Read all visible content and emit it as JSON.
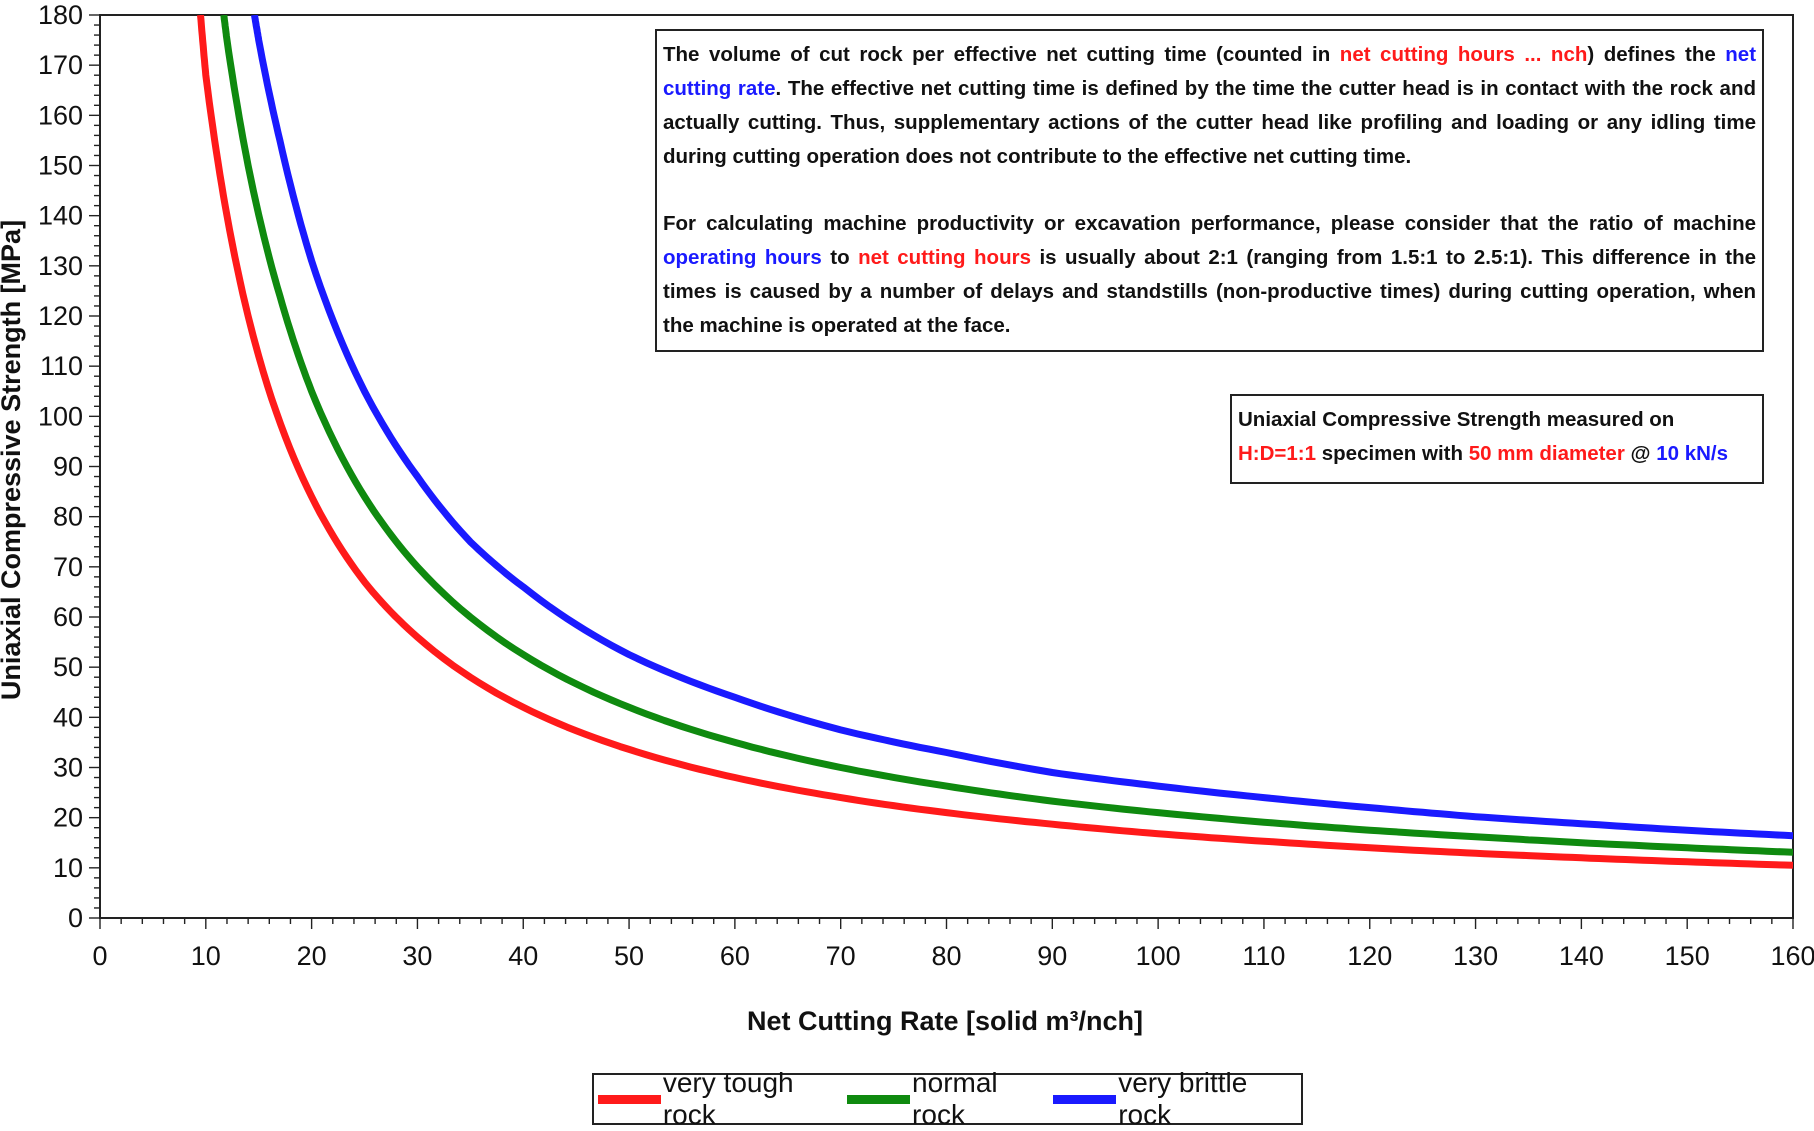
{
  "chart_data": {
    "type": "line",
    "title": "",
    "xlabel": "Net Cutting Rate [solid m³/nch]",
    "ylabel": "Uniaxial Compressive Strength [MPa]",
    "xlim": [
      0,
      160
    ],
    "ylim": [
      0,
      180
    ],
    "x_ticks": [
      0,
      10,
      20,
      30,
      40,
      50,
      60,
      70,
      80,
      90,
      100,
      110,
      120,
      130,
      140,
      150,
      160
    ],
    "y_ticks": [
      0,
      10,
      20,
      30,
      40,
      50,
      60,
      70,
      80,
      90,
      100,
      110,
      120,
      130,
      140,
      150,
      160,
      170,
      180
    ],
    "grid": true,
    "legend_position": "bottom-center",
    "series": [
      {
        "name": "very tough rock",
        "color": "#ff1a1a",
        "x": [
          9.5,
          10,
          12,
          15,
          20,
          25,
          30,
          40,
          50,
          60,
          70,
          80,
          90,
          100,
          110,
          120,
          130,
          140,
          150,
          160
        ],
        "values": [
          180,
          168,
          140,
          112,
          84,
          67,
          56,
          42,
          33.6,
          28,
          24,
          21,
          18.7,
          16.8,
          15.3,
          14,
          12.9,
          12,
          11.2,
          10.5
        ]
      },
      {
        "name": "normal rock",
        "color": "#0f8a0f",
        "x": [
          11.7,
          12,
          14,
          17,
          20,
          25,
          30,
          40,
          50,
          60,
          70,
          80,
          90,
          100,
          110,
          120,
          130,
          140,
          150,
          160
        ],
        "values": [
          180,
          175,
          150,
          124,
          105,
          84,
          70,
          52.5,
          42,
          35,
          30,
          26.3,
          23.3,
          21,
          19.1,
          17.5,
          16.2,
          15,
          14,
          13.1
        ]
      },
      {
        "name": "very brittle rock",
        "color": "#1a1aff",
        "x": [
          14.6,
          15,
          17,
          20,
          25,
          30,
          35,
          40,
          50,
          60,
          70,
          80,
          90,
          100,
          110,
          120,
          130,
          140,
          150,
          160
        ],
        "values": [
          180,
          175,
          155,
          131,
          105,
          88,
          75,
          66,
          52.5,
          44,
          37.5,
          33,
          29,
          26.3,
          24,
          22,
          20.2,
          18.8,
          17.5,
          16.4
        ]
      }
    ]
  },
  "info_box": {
    "p1": [
      {
        "text": "The volume of cut rock per effective net cutting time (counted in ",
        "color": ""
      },
      {
        "text": "net cutting hours ... nch",
        "color": "red"
      },
      {
        "text": ") defines the ",
        "color": ""
      },
      {
        "text": "net cutting rate",
        "color": "blue"
      },
      {
        "text": ". The effective net cutting time is defined by the time the cutter head is in contact with the rock and actually cutting. Thus, supplementary actions of the cutter head like profiling and loading or any idling time during cutting operation does not contribute to the effective net cutting time.",
        "color": ""
      }
    ],
    "p2": [
      {
        "text": "For calculating machine productivity or excavation performance, please consider that the ratio of machine ",
        "color": ""
      },
      {
        "text": "operating hours",
        "color": "blue"
      },
      {
        "text": " to ",
        "color": ""
      },
      {
        "text": "net cutting hours",
        "color": "red"
      },
      {
        "text": " is usually about 2:1 (ranging from 1.5:1 to 2.5:1). This difference in the times is caused by a number of delays and standstills (non-productive times) during cutting operation, when the machine is operated at the face.",
        "color": ""
      }
    ]
  },
  "ucs_box": [
    {
      "text": "Uniaxial Compressive Strength measured on ",
      "color": ""
    },
    {
      "text": "H:D=1:1",
      "color": "red"
    },
    {
      "text": " specimen with ",
      "color": ""
    },
    {
      "text": "50 mm diameter",
      "color": "red"
    },
    {
      "text": " @ ",
      "color": ""
    },
    {
      "text": "10 kN/s",
      "color": "blue"
    }
  ]
}
